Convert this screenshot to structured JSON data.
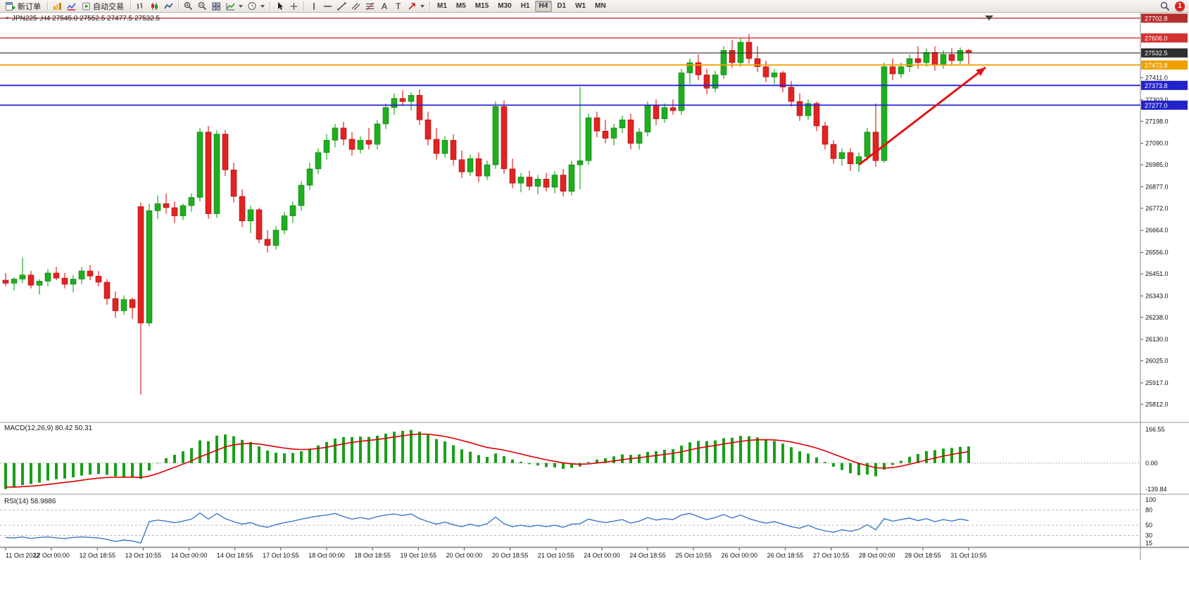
{
  "toolbar": {
    "new_order_label": "新订单",
    "algo_trading_label": "自动交易",
    "text_tool_glyph": "A",
    "label_tool_glyph": "T",
    "timeframes": [
      "M1",
      "M5",
      "M15",
      "M30",
      "H1",
      "H4",
      "D1",
      "W1",
      "MN"
    ],
    "active_timeframe": "H4",
    "notification_count": "1"
  },
  "chart": {
    "symbol_info": "JPN225-,H4  27545.0 27552.5 27477.5 27532.5",
    "price_ticks": [
      "27411.0",
      "27303.0",
      "27198.0",
      "27090.0",
      "26985.0",
      "26877.0",
      "26772.0",
      "26664.0",
      "26556.0",
      "26451.0",
      "26343.0",
      "26238.0",
      "26130.0",
      "26025.0",
      "25917.0",
      "25812.0"
    ],
    "levels": [
      {
        "price": 27702.8,
        "label": "27702.8",
        "color": "#b52f2f",
        "width": 1.4,
        "current": false
      },
      {
        "price": 27606.0,
        "label": "27606.0",
        "color": "#d23232",
        "width": 1.4,
        "current": false
      },
      {
        "price": 27532.5,
        "label": "27532.5",
        "color": "#2e2e2e",
        "width": 1.1,
        "current": true
      },
      {
        "price": 27473.8,
        "label": "27473.8",
        "color": "#efa000",
        "width": 1.8,
        "current": false
      },
      {
        "price": 27373.8,
        "label": "27373.8",
        "color": "#2323cc",
        "width": 1.8,
        "current": false
      },
      {
        "price": 27277.0,
        "label": "27277.0",
        "color": "#2323cc",
        "width": 1.8,
        "current": false
      }
    ]
  },
  "macd": {
    "name": "MACD(12,26,9)",
    "values": "80.42 50.31",
    "scale_top": "166.55",
    "scale_zero": "0.00",
    "scale_bottom": "-139.84"
  },
  "rsi": {
    "name": "RSI(14)",
    "value": "58.9886",
    "scale": [
      "100",
      "80",
      "50",
      "30",
      "15"
    ],
    "levels": [
      80,
      50,
      30
    ]
  },
  "time_axis": [
    "11 Oct 2022",
    "12 Oct 00:00",
    "12 Oct 18:55",
    "13 Oct 10:55",
    "14 Oct 00:00",
    "14 Oct 18:55",
    "17 Oct 10:55",
    "18 Oct 00:00",
    "18 Oct 18:55",
    "19 Oct 10:55",
    "20 Oct 00:00",
    "20 Oct 18:55",
    "21 Oct 10:55",
    "24 Oct 00:00",
    "24 Oct 18:55",
    "25 Oct 10:55",
    "26 Oct 00:00",
    "26 Oct 18:55",
    "27 Oct 10:55",
    "28 Oct 00:00",
    "28 Oct 18:55",
    "31 Oct 10:55"
  ],
  "chart_data": {
    "type": "candlestick",
    "symbol": "JPN225-",
    "timeframe": "H4",
    "title": "JPN225-,H4",
    "ohlc": {
      "open": 27545.0,
      "high": 27552.5,
      "low": 27477.5,
      "close": 27532.5
    },
    "y_range": [
      25758,
      27716
    ],
    "candles": [
      [
        26420,
        26455,
        26390,
        26405
      ],
      [
        26405,
        26435,
        26370,
        26425
      ],
      [
        26425,
        26530,
        26405,
        26445
      ],
      [
        26445,
        26465,
        26380,
        26395
      ],
      [
        26395,
        26425,
        26350,
        26415
      ],
      [
        26415,
        26475,
        26390,
        26455
      ],
      [
        26455,
        26485,
        26420,
        26430
      ],
      [
        26430,
        26455,
        26380,
        26400
      ],
      [
        26400,
        26445,
        26360,
        26425
      ],
      [
        26425,
        26485,
        26400,
        26465
      ],
      [
        26465,
        26495,
        26420,
        26440
      ],
      [
        26440,
        26465,
        26390,
        26410
      ],
      [
        26410,
        26425,
        26300,
        26330
      ],
      [
        26330,
        26365,
        26235,
        26270
      ],
      [
        26270,
        26345,
        26250,
        26325
      ],
      [
        26325,
        26335,
        26230,
        26285
      ],
      [
        26780,
        26800,
        25860,
        26210
      ],
      [
        26210,
        26795,
        26195,
        26760
      ],
      [
        26760,
        26835,
        26720,
        26795
      ],
      [
        26795,
        26845,
        26745,
        26775
      ],
      [
        26775,
        26805,
        26700,
        26735
      ],
      [
        26735,
        26795,
        26715,
        26785
      ],
      [
        26785,
        26845,
        26755,
        26825
      ],
      [
        26825,
        27165,
        26805,
        27145
      ],
      [
        27145,
        27175,
        26720,
        26745
      ],
      [
        26745,
        27155,
        26725,
        27135
      ],
      [
        27135,
        27155,
        26930,
        26960
      ],
      [
        26960,
        26995,
        26800,
        26830
      ],
      [
        26830,
        26865,
        26680,
        26710
      ],
      [
        26710,
        26785,
        26650,
        26765
      ],
      [
        26765,
        26775,
        26600,
        26620
      ],
      [
        26620,
        26665,
        26555,
        26590
      ],
      [
        26590,
        26685,
        26570,
        26665
      ],
      [
        26665,
        26755,
        26645,
        26735
      ],
      [
        26735,
        26805,
        26700,
        26785
      ],
      [
        26785,
        26905,
        26760,
        26885
      ],
      [
        26885,
        26995,
        26860,
        26965
      ],
      [
        26965,
        27065,
        26940,
        27045
      ],
      [
        27045,
        27135,
        27010,
        27105
      ],
      [
        27105,
        27185,
        27070,
        27165
      ],
      [
        27165,
        27195,
        27080,
        27110
      ],
      [
        27110,
        27145,
        27030,
        27060
      ],
      [
        27060,
        27125,
        27040,
        27105
      ],
      [
        27105,
        27165,
        27060,
        27085
      ],
      [
        27085,
        27205,
        27060,
        27185
      ],
      [
        27185,
        27285,
        27160,
        27265
      ],
      [
        27265,
        27335,
        27230,
        27310
      ],
      [
        27310,
        27350,
        27280,
        27295
      ],
      [
        27295,
        27340,
        27250,
        27325
      ],
      [
        27325,
        27355,
        27180,
        27205
      ],
      [
        27205,
        27245,
        27080,
        27110
      ],
      [
        27110,
        27165,
        27010,
        27040
      ],
      [
        27040,
        27125,
        27020,
        27105
      ],
      [
        27105,
        27135,
        26980,
        27010
      ],
      [
        27010,
        27055,
        26920,
        26950
      ],
      [
        26950,
        27035,
        26930,
        27015
      ],
      [
        27015,
        27045,
        26900,
        26930
      ],
      [
        26930,
        27005,
        26910,
        26985
      ],
      [
        26985,
        27295,
        26965,
        27270
      ],
      [
        27270,
        27300,
        26940,
        26965
      ],
      [
        26965,
        27015,
        26870,
        26895
      ],
      [
        26895,
        26945,
        26850,
        26925
      ],
      [
        26925,
        26955,
        26860,
        26880
      ],
      [
        26880,
        26935,
        26840,
        26915
      ],
      [
        26915,
        26945,
        26855,
        26875
      ],
      [
        26875,
        26955,
        26845,
        26935
      ],
      [
        26935,
        26965,
        26830,
        26855
      ],
      [
        26855,
        27005,
        26835,
        26985
      ],
      [
        26985,
        27365,
        26865,
        27005
      ],
      [
        27005,
        27235,
        26985,
        27215
      ],
      [
        27215,
        27245,
        27120,
        27150
      ],
      [
        27150,
        27205,
        27090,
        27115
      ],
      [
        27115,
        27185,
        27080,
        27165
      ],
      [
        27165,
        27225,
        27140,
        27205
      ],
      [
        27205,
        27235,
        27060,
        27090
      ],
      [
        27090,
        27165,
        27060,
        27145
      ],
      [
        27145,
        27295,
        27125,
        27275
      ],
      [
        27275,
        27305,
        27180,
        27210
      ],
      [
        27210,
        27285,
        27190,
        27265
      ],
      [
        27265,
        27305,
        27230,
        27250
      ],
      [
        27250,
        27455,
        27230,
        27435
      ],
      [
        27435,
        27505,
        27380,
        27485
      ],
      [
        27485,
        27525,
        27400,
        27425
      ],
      [
        27425,
        27455,
        27330,
        27360
      ],
      [
        27360,
        27445,
        27340,
        27425
      ],
      [
        27425,
        27565,
        27405,
        27545
      ],
      [
        27545,
        27595,
        27460,
        27485
      ],
      [
        27485,
        27605,
        27465,
        27585
      ],
      [
        27585,
        27625,
        27480,
        27505
      ],
      [
        27505,
        27565,
        27440,
        27465
      ],
      [
        27465,
        27495,
        27390,
        27415
      ],
      [
        27415,
        27455,
        27380,
        27435
      ],
      [
        27435,
        27445,
        27340,
        27365
      ],
      [
        27365,
        27395,
        27270,
        27295
      ],
      [
        27295,
        27335,
        27200,
        27225
      ],
      [
        27225,
        27305,
        27205,
        27285
      ],
      [
        27285,
        27295,
        27150,
        27175
      ],
      [
        27175,
        27195,
        27060,
        27085
      ],
      [
        27085,
        27105,
        26990,
        27015
      ],
      [
        27015,
        27065,
        26980,
        27045
      ],
      [
        27045,
        27065,
        26955,
        26990
      ],
      [
        26990,
        27045,
        26950,
        27025
      ],
      [
        27025,
        27165,
        27005,
        27145
      ],
      [
        27145,
        27285,
        26975,
        27005
      ],
      [
        27005,
        27485,
        26995,
        27465
      ],
      [
        27465,
        27505,
        27400,
        27430
      ],
      [
        27430,
        27485,
        27410,
        27465
      ],
      [
        27465,
        27525,
        27440,
        27505
      ],
      [
        27505,
        27565,
        27455,
        27485
      ],
      [
        27485,
        27555,
        27465,
        27535
      ],
      [
        27535,
        27565,
        27445,
        27475
      ],
      [
        27475,
        27545,
        27455,
        27525
      ],
      [
        27525,
        27555,
        27470,
        27495
      ],
      [
        27495,
        27560,
        27480,
        27545
      ],
      [
        27545,
        27552.5,
        27477.5,
        27532.5
      ]
    ],
    "rsi_values": [
      26,
      25,
      27,
      24,
      26,
      27,
      25,
      24,
      26,
      27,
      26,
      25,
      22,
      18,
      21,
      19,
      15,
      57,
      60,
      58,
      55,
      58,
      62,
      74,
      62,
      73,
      63,
      57,
      52,
      55,
      49,
      46,
      51,
      55,
      58,
      62,
      65,
      68,
      70,
      73,
      67,
      62,
      65,
      62,
      67,
      70,
      72,
      69,
      72,
      63,
      57,
      52,
      56,
      51,
      47,
      52,
      48,
      53,
      66,
      53,
      47,
      50,
      47,
      50,
      47,
      50,
      46,
      52,
      53,
      62,
      58,
      55,
      58,
      61,
      54,
      58,
      65,
      60,
      63,
      61,
      70,
      73,
      67,
      61,
      65,
      71,
      64,
      70,
      63,
      58,
      54,
      57,
      52,
      47,
      44,
      50,
      43,
      39,
      36,
      41,
      38,
      42,
      51,
      41,
      63,
      58,
      61,
      64,
      59,
      63,
      57,
      61,
      58,
      62,
      58.99
    ],
    "macd_seed": {
      "ema12": 26430,
      "ema26": 26560,
      "signal": -110
    },
    "trend_arrow": {
      "from_bar": 101,
      "from_price": 26985,
      "to_bar": 116,
      "to_price": 27462,
      "color": "#e81212"
    },
    "colors": {
      "bull": "#1fae1f",
      "bear": "#e32222",
      "bull_edge": "#0c7a0c",
      "bear_edge": "#a01010",
      "macd_hist": "#18a018",
      "macd_signal": "#dd0000",
      "rsi_line": "#3c78c8"
    }
  }
}
